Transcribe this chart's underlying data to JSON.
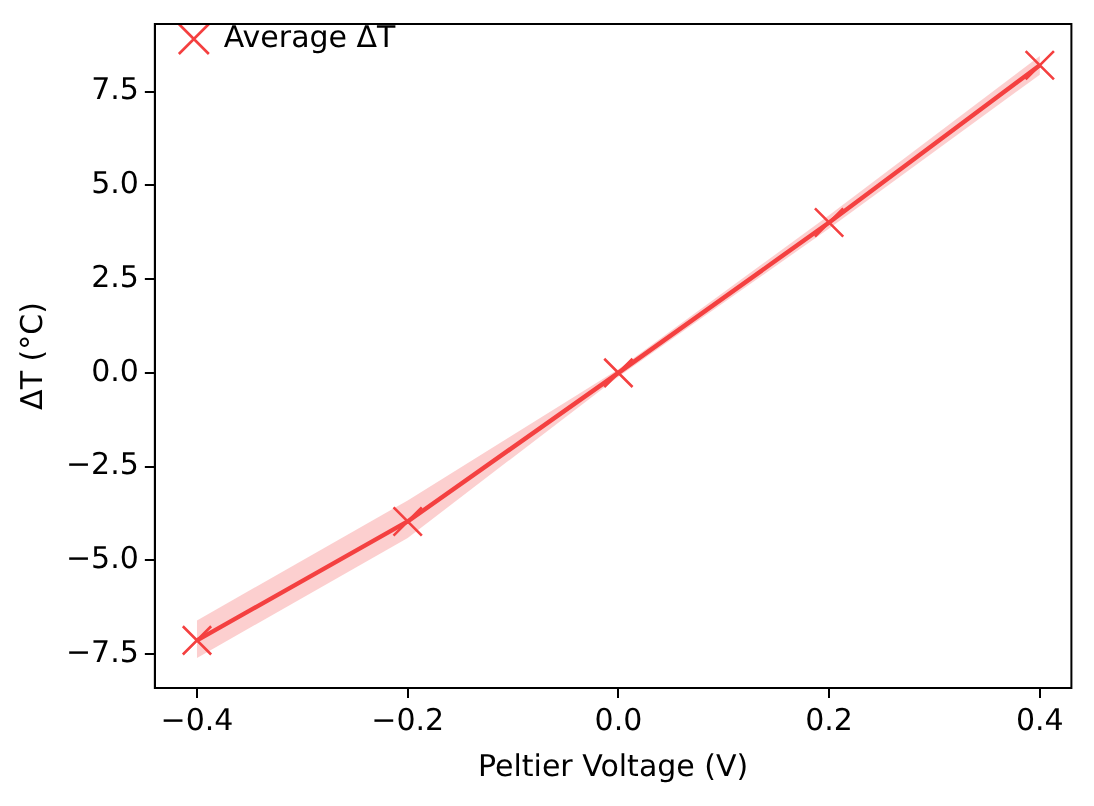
{
  "chart_data": {
    "type": "line",
    "xlabel": "Peltier Voltage (V)",
    "ylabel": "ΔT (°C)",
    "x": [
      -0.4,
      -0.2,
      0.0,
      0.2,
      0.4
    ],
    "series": [
      {
        "name": "Average ΔT",
        "color": "#f44040",
        "values": [
          -7.13,
          -3.96,
          0.0,
          4.01,
          8.2
        ],
        "lower": [
          -7.6,
          -4.4,
          -0.1,
          3.85,
          7.95
        ],
        "upper": [
          -6.6,
          -3.4,
          0.1,
          4.2,
          8.45
        ]
      }
    ],
    "xlim": [
      -0.44,
      0.43
    ],
    "xticks": [
      {
        "value": -0.4,
        "label": "−0.4"
      },
      {
        "value": -0.2,
        "label": "−0.2"
      },
      {
        "value": 0.0,
        "label": "0.0"
      },
      {
        "value": 0.2,
        "label": "0.2"
      },
      {
        "value": 0.4,
        "label": "0.4"
      }
    ],
    "ylim": [
      -8.4,
      9.3
    ],
    "yticks": [
      {
        "value": -7.5,
        "label": "−7.5"
      },
      {
        "value": -5.0,
        "label": "−5.0"
      },
      {
        "value": -2.5,
        "label": "−2.5"
      },
      {
        "value": 0.0,
        "label": "0.0"
      },
      {
        "value": 2.5,
        "label": "2.5"
      },
      {
        "value": 5.0,
        "label": "5.0"
      },
      {
        "value": 7.5,
        "label": "7.5"
      }
    ],
    "grid": false,
    "legend": "top left",
    "marker": "cross",
    "line_style": "solid"
  }
}
